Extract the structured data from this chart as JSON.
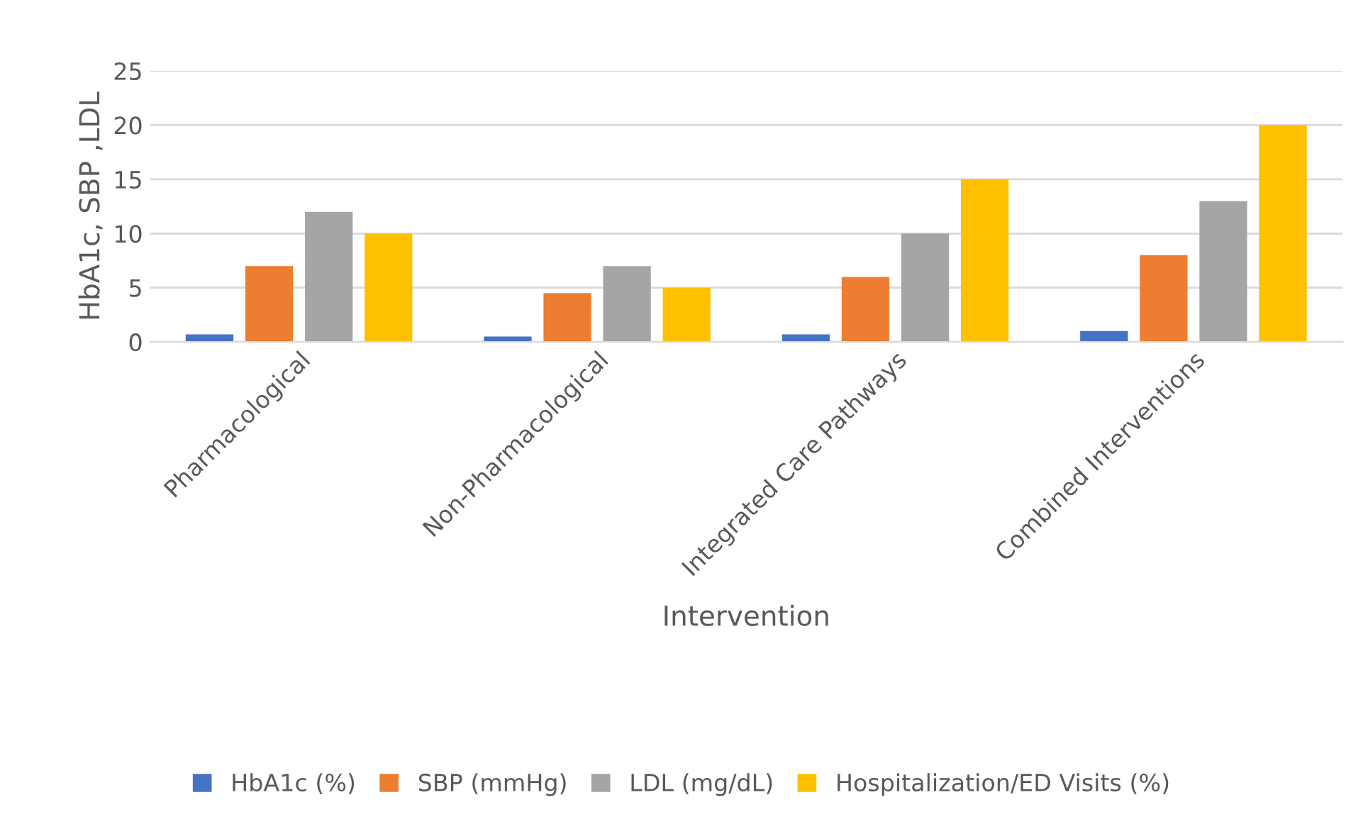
{
  "chart_data": {
    "type": "bar",
    "xlabel": "Intervention",
    "ylabel": "HbA1c, SBP ,LDL",
    "categories": [
      "Pharmacological",
      "Non-Pharmacological",
      "Integrated Care Pathways",
      "Combined Interventions"
    ],
    "series": [
      {
        "name": "HbA1c (%)",
        "color": "#4472c4",
        "values": [
          0.7,
          0.5,
          0.7,
          1.0
        ]
      },
      {
        "name": "SBP (mmHg)",
        "color": "#ed7d31",
        "values": [
          7,
          4.5,
          6,
          8
        ]
      },
      {
        "name": "LDL (mg/dL)",
        "color": "#a5a5a5",
        "values": [
          12,
          7,
          10,
          13
        ]
      },
      {
        "name": "Hospitalization/ED Visits (%)",
        "color": "#ffc000",
        "values": [
          10,
          5,
          15,
          20
        ]
      }
    ],
    "ylim": [
      0,
      25
    ],
    "yticks": [
      0,
      5,
      10,
      15,
      20,
      25
    ],
    "grid": "y",
    "legend": "bottom"
  }
}
